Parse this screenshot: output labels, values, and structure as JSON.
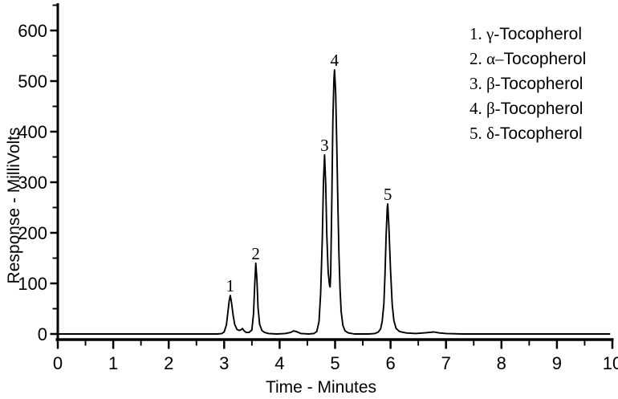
{
  "figure": {
    "background": "#ffffff",
    "ink_color": "#000000"
  },
  "chart_data": {
    "type": "line",
    "title": "",
    "xlabel": "Time - Minutes",
    "ylabel": "Response - MilliVolts",
    "xlim": [
      0,
      10
    ],
    "ylim": [
      0,
      650
    ],
    "grid": false,
    "legend_position": "top-right",
    "x_major_ticks": [
      0,
      1,
      2,
      3,
      4,
      5,
      6,
      7,
      8,
      9,
      10
    ],
    "x_minor_step": 0.5,
    "y_major_ticks": [
      0,
      100,
      200,
      300,
      400,
      500,
      600
    ],
    "y_minor_step": 50,
    "line_color": "#000000",
    "peaks": [
      {
        "label": "1",
        "compound": "γ-Tocopherol",
        "retention_time_min": 3.11,
        "height_mv": 76
      },
      {
        "label": "2",
        "compound": "α–Tocopherol",
        "retention_time_min": 3.57,
        "height_mv": 140
      },
      {
        "label": "3",
        "compound": "β-Tocopherol",
        "retention_time_min": 4.81,
        "height_mv": 354
      },
      {
        "label": "4",
        "compound": "β-Tocopherol",
        "retention_time_min": 4.99,
        "height_mv": 522
      },
      {
        "label": "5",
        "compound": "δ-Tocopherol",
        "retention_time_min": 5.95,
        "height_mv": 257
      }
    ],
    "minor_features": [
      {
        "time_min": 3.33,
        "height_mv": 11
      },
      {
        "time_min": 4.25,
        "height_mv": 6
      },
      {
        "time_min": 6.78,
        "height_mv": 4
      }
    ],
    "trace_points": [
      [
        0,
        0
      ],
      [
        2.88,
        0
      ],
      [
        2.96,
        1
      ],
      [
        3.0,
        4
      ],
      [
        3.04,
        18
      ],
      [
        3.07,
        45
      ],
      [
        3.09,
        65
      ],
      [
        3.11,
        76
      ],
      [
        3.13,
        64
      ],
      [
        3.16,
        38
      ],
      [
        3.19,
        19
      ],
      [
        3.23,
        9
      ],
      [
        3.27,
        7
      ],
      [
        3.3,
        8
      ],
      [
        3.33,
        11
      ],
      [
        3.36,
        6
      ],
      [
        3.4,
        3
      ],
      [
        3.45,
        3
      ],
      [
        3.5,
        8
      ],
      [
        3.53,
        40
      ],
      [
        3.55,
        95
      ],
      [
        3.57,
        140
      ],
      [
        3.59,
        108
      ],
      [
        3.61,
        52
      ],
      [
        3.64,
        19
      ],
      [
        3.68,
        7
      ],
      [
        3.73,
        3
      ],
      [
        3.8,
        1
      ],
      [
        3.95,
        0
      ],
      [
        4.1,
        1
      ],
      [
        4.2,
        3
      ],
      [
        4.25,
        6
      ],
      [
        4.3,
        5
      ],
      [
        4.38,
        1
      ],
      [
        4.52,
        0
      ],
      [
        4.62,
        1
      ],
      [
        4.67,
        5
      ],
      [
        4.71,
        25
      ],
      [
        4.74,
        80
      ],
      [
        4.77,
        190
      ],
      [
        4.79,
        300
      ],
      [
        4.81,
        354
      ],
      [
        4.83,
        298
      ],
      [
        4.85,
        200
      ],
      [
        4.875,
        122
      ],
      [
        4.9,
        96
      ],
      [
        4.91,
        93
      ],
      [
        4.92,
        118
      ],
      [
        4.94,
        260
      ],
      [
        4.96,
        420
      ],
      [
        4.98,
        505
      ],
      [
        4.99,
        522
      ],
      [
        5.01,
        478
      ],
      [
        5.03,
        375
      ],
      [
        5.05,
        255
      ],
      [
        5.07,
        158
      ],
      [
        5.09,
        88
      ],
      [
        5.11,
        44
      ],
      [
        5.14,
        17
      ],
      [
        5.18,
        6
      ],
      [
        5.24,
        2
      ],
      [
        5.35,
        0
      ],
      [
        5.6,
        0
      ],
      [
        5.72,
        1
      ],
      [
        5.78,
        4
      ],
      [
        5.82,
        10
      ],
      [
        5.85,
        25
      ],
      [
        5.88,
        60
      ],
      [
        5.9,
        118
      ],
      [
        5.92,
        195
      ],
      [
        5.94,
        250
      ],
      [
        5.95,
        257
      ],
      [
        5.97,
        213
      ],
      [
        6.0,
        126
      ],
      [
        6.03,
        58
      ],
      [
        6.06,
        27
      ],
      [
        6.1,
        11
      ],
      [
        6.16,
        5
      ],
      [
        6.28,
        2
      ],
      [
        6.45,
        1
      ],
      [
        6.6,
        2
      ],
      [
        6.7,
        3
      ],
      [
        6.78,
        4
      ],
      [
        6.88,
        2
      ],
      [
        7.0,
        1
      ],
      [
        7.3,
        0
      ],
      [
        9.95,
        0
      ]
    ]
  },
  "legend": {
    "items": [
      {
        "prefix": "1. γ-",
        "compound": "Tocopherol"
      },
      {
        "prefix": "2. α–",
        "compound": "Tocopherol"
      },
      {
        "prefix": "3. β-",
        "compound": "Tocopherol"
      },
      {
        "prefix": "4. β-",
        "compound": "Tocopherol"
      },
      {
        "prefix": "5. δ-",
        "compound": "Tocopherol"
      }
    ]
  }
}
